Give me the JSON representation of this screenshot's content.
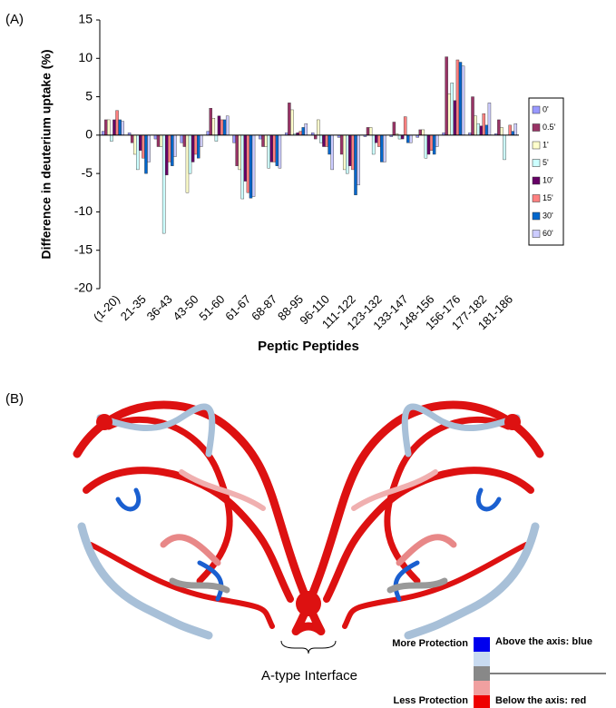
{
  "chart_data": {
    "type": "bar",
    "y_label": "Difference in deuterium uptake (%)",
    "x_label": "Peptic Peptides",
    "categories": [
      "(1-20)",
      "21-35",
      "36-43",
      "43-50",
      "51-60",
      "61-67",
      "68-87",
      "88-95",
      "96-110",
      "111-122",
      "123-132",
      "133-147",
      "148-156",
      "156-176",
      "177-182",
      "181-186"
    ],
    "series": [
      {
        "name": "0'",
        "color": "#9999ff",
        "values": [
          0.5,
          0.3,
          -0.5,
          -1,
          0.5,
          -1,
          -0.5,
          0.3,
          0.3,
          -0.3,
          -0.2,
          -0.2,
          -0.3,
          0.3,
          0.3,
          0.2
        ]
      },
      {
        "name": "0.5'",
        "color": "#993366",
        "values": [
          2,
          -1,
          -1.5,
          -1.5,
          3.5,
          -4,
          -1.5,
          4.2,
          -0.5,
          -2.5,
          1,
          1.7,
          0.7,
          10.2,
          5,
          2
        ]
      },
      {
        "name": "1'",
        "color": "#ffffcc",
        "values": [
          2,
          -2.5,
          -1.5,
          -7.5,
          2.2,
          -4.5,
          -1.5,
          3.3,
          2,
          -4.5,
          1,
          0.2,
          0.7,
          5.4,
          2.5,
          1
        ]
      },
      {
        "name": "5'",
        "color": "#ccffff",
        "values": [
          -0.8,
          -4.5,
          -12.8,
          -5,
          -0.8,
          -8.3,
          -4.3,
          0.2,
          -1,
          -5,
          -2.5,
          -0.5,
          -3,
          6.8,
          1.5,
          -3.2
        ]
      },
      {
        "name": "10'",
        "color": "#660066",
        "values": [
          2,
          -2,
          -5.2,
          -3.5,
          2.5,
          -6,
          -3.5,
          0.3,
          -1.5,
          -4,
          -1,
          -0.5,
          -2.5,
          4.5,
          1.2,
          0
        ]
      },
      {
        "name": "15'",
        "color": "#ff8080",
        "values": [
          3.2,
          -3,
          -3.5,
          -2.5,
          2,
          -7.5,
          -3.5,
          0.5,
          -1.5,
          -4.5,
          -1.5,
          2.4,
          -2,
          9.8,
          2.8,
          1.3
        ]
      },
      {
        "name": "30'",
        "color": "#0066cc",
        "values": [
          2,
          -5,
          -4,
          -3,
          2,
          -8.2,
          -4,
          1,
          -2.5,
          -7.8,
          -3.5,
          -1,
          -2.5,
          9.5,
          1.3,
          0.5
        ]
      },
      {
        "name": "60'",
        "color": "#ccccff",
        "values": [
          1.8,
          -3.5,
          -2.8,
          -1.5,
          2.5,
          -8,
          -4.3,
          1.5,
          -4.5,
          -6.5,
          -3.5,
          -1,
          -1.5,
          9,
          4.2,
          1.5
        ]
      }
    ],
    "ylim": [
      -20,
      15
    ],
    "yticks": [
      -20,
      -15,
      -10,
      -5,
      0,
      5,
      10,
      15
    ],
    "grid": false,
    "legend": "right"
  },
  "panel_labels": [
    "(A)",
    "(B)"
  ],
  "panel_b": {
    "interface_label": "A-type Interface",
    "more_protection": "More Protection",
    "less_protection": "Less Protection",
    "above_axis": "Above the axis: blue",
    "below_axis": "Below the axis: red"
  }
}
